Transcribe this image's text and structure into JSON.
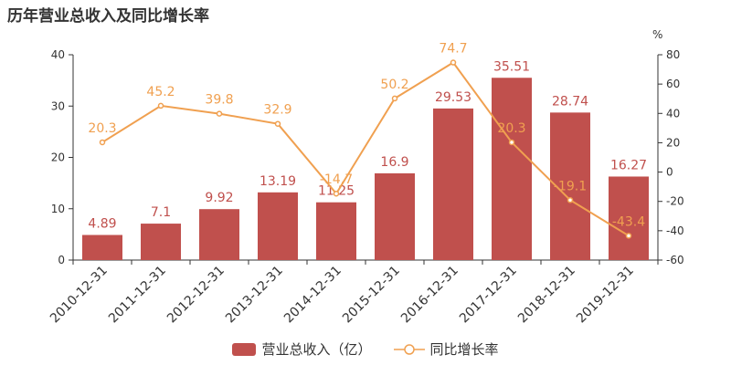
{
  "title": "历年营业总收入及同比增长率",
  "colors": {
    "bar": "#c0504d",
    "line": "#f0a050",
    "axis": "#333333",
    "grid": "#e0e0e0"
  },
  "chart_data": {
    "type": "bar+line",
    "title": "历年营业总收入及同比增长率",
    "categories": [
      "2010-12-31",
      "2011-12-31",
      "2012-12-31",
      "2013-12-31",
      "2014-12-31",
      "2015-12-31",
      "2016-12-31",
      "2017-12-31",
      "2018-12-31",
      "2019-12-31"
    ],
    "series": [
      {
        "name": "营业总收入（亿）",
        "type": "bar",
        "axis": "left",
        "values": [
          4.89,
          7.1,
          9.92,
          13.19,
          11.25,
          16.9,
          29.53,
          35.51,
          28.74,
          16.27
        ]
      },
      {
        "name": "同比增长率",
        "type": "line",
        "axis": "right",
        "values": [
          20.3,
          45.2,
          39.8,
          32.9,
          -14.7,
          50.2,
          74.7,
          20.3,
          -19.1,
          -43.4
        ]
      }
    ],
    "left_axis": {
      "min": 0,
      "max": 40,
      "ticks": [
        0,
        10,
        20,
        30,
        40
      ]
    },
    "right_axis": {
      "label": "%",
      "min": -60,
      "max": 80,
      "ticks": [
        -60,
        -40,
        -20,
        0,
        20,
        40,
        60,
        80
      ]
    },
    "grid": false,
    "legend_position": "bottom"
  }
}
